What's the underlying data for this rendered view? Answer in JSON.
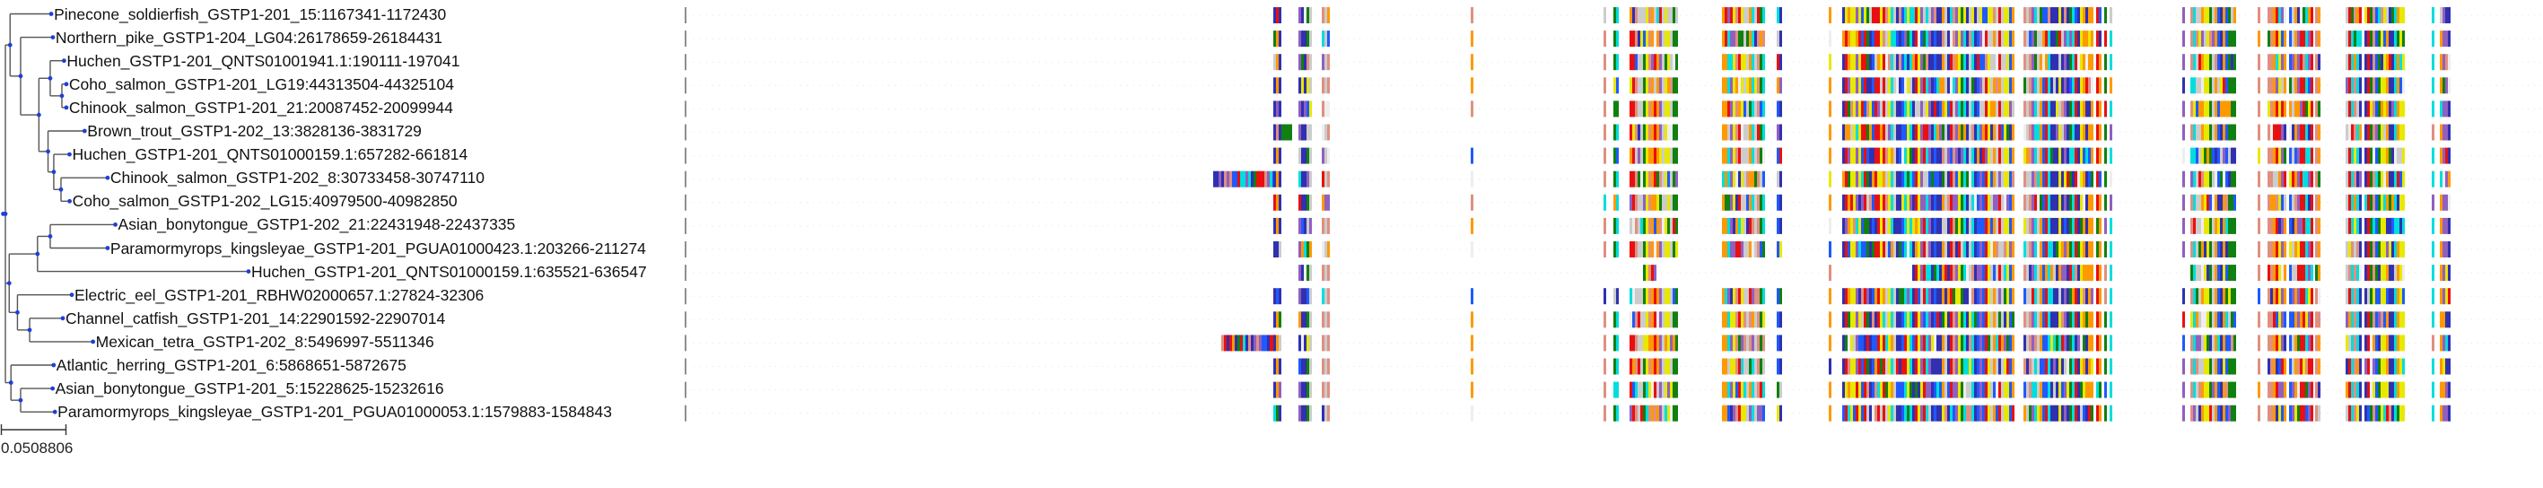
{
  "tips": [
    "Pinecone_soldierfish_GSTP1-201_15:1167341-1172430",
    "Northern_pike_GSTP1-204_LG04:26178659-26184431",
    "Huchen_GSTP1-201_QNTS01001941.1:190111-197041",
    "Coho_salmon_GSTP1-201_LG19:44313504-44325104",
    "Chinook_salmon_GSTP1-201_21:20087452-20099944",
    "Brown_trout_GSTP1-202_13:3828136-3831729",
    "Huchen_GSTP1-201_QNTS01000159.1:657282-661814",
    "Chinook_salmon_GSTP1-202_8:30733458-30747110",
    "Coho_salmon_GSTP1-202_LG15:40979500-40982850",
    "Asian_bonytongue_GSTP1-202_21:22431948-22437335",
    "Paramormyrops_kingsleyae_GSTP1-201_PGUA01000423.1:203266-211274",
    "Huchen_GSTP1-201_QNTS01000159.1:635521-636547",
    "Electric_eel_GSTP1-201_RBHW02000657.1:27824-32306",
    "Channel_catfish_GSTP1-201_14:22901592-22907014",
    "Mexican_tetra_GSTP1-202_8:5496997-5511346",
    "Atlantic_herring_GSTP1-201_6:5868651-5872675",
    "Asian_bonytongue_GSTP1-201_5:15228625-15232616",
    "Paramormyrops_kingsleyae_GSTP1-201_PGUA01000053.1:1579883-1584843"
  ],
  "scale_bar": {
    "label": "0.0508806",
    "value": 0.0508806
  },
  "tree": {
    "len": 0,
    "children": [
      {
        "len": 0.0037,
        "children": [
          {
            "tip": 0,
            "len": 0.0324
          },
          {
            "len": 0.0083,
            "children": [
              {
                "tip": 1,
                "len": 0.0254
              },
              {
                "len": 0.0144,
                "children": [
                  {
                    "len": 0.0089,
                    "children": [
                      {
                        "tip": 2,
                        "len": 0.0109
                      },
                      {
                        "len": 0.0092,
                        "children": [
                          {
                            "tip": 3,
                            "len": 0.0035
                          },
                          {
                            "tip": 4,
                            "len": 0.0035
                          }
                        ]
                      }
                    ]
                  },
                  {
                    "len": 0.0072,
                    "children": [
                      {
                        "tip": 5,
                        "len": 0.0288
                      },
                      {
                        "len": 0.0045,
                        "children": [
                          {
                            "tip": 6,
                            "len": 0.0124
                          },
                          {
                            "len": 0.0057,
                            "children": [
                              {
                                "tip": 7,
                                "len": 0.0367
                              },
                              {
                                "tip": 8,
                                "len": 0.0068
                              }
                            ]
                          }
                        ]
                      }
                    ]
                  }
                ]
              }
            ]
          }
        ]
      },
      {
        "len": 0.003,
        "children": [
          {
            "len": 0.0223,
            "children": [
              {
                "len": 0.01,
                "children": [
                  {
                    "tip": 9,
                    "len": 0.0513
                  },
                  {
                    "tip": 10,
                    "len": 0.0452
                  }
                ]
              },
              {
                "tip": 11,
                "len": 0.1662
              }
            ]
          },
          {
            "len": 0.0065,
            "children": [
              {
                "tip": 12,
                "len": 0.0428
              },
              {
                "len": 0.0096,
                "children": [
                  {
                    "tip": 13,
                    "len": 0.0261
                  },
                  {
                    "tip": 14,
                    "len": 0.0499
                  }
                ]
              }
            ]
          }
        ]
      },
      {
        "len": 0.0044,
        "children": [
          {
            "tip": 15,
            "len": 0.0336
          },
          {
            "len": 0.0076,
            "children": [
              {
                "tip": 16,
                "len": 0.0252
              },
              {
                "tip": 17,
                "len": 0.027
              }
            ]
          }
        ]
      }
    ]
  },
  "colors": {
    "branch": "#555555",
    "node": "#1f3fd6",
    "residues": [
      "#1e5aff",
      "#108010",
      "#e81010",
      "#ff9900",
      "#e8e800",
      "#00dddd",
      "#3030b0",
      "#e09080",
      "#cccccc",
      "#9060c0",
      "#eeeeee"
    ]
  }
}
